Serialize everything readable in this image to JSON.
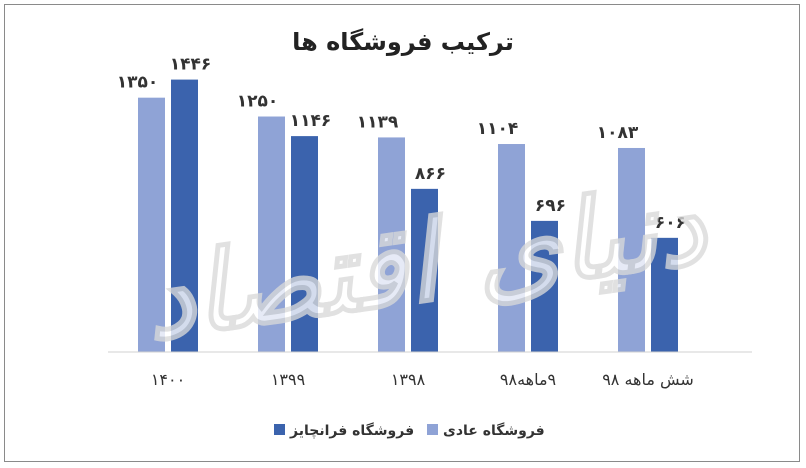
{
  "chart_data": {
    "type": "bar",
    "title": "ترکیب فروشگاه ها",
    "xlabel": "",
    "ylabel": "",
    "ylim": [
      0,
      1550
    ],
    "grid": false,
    "legend_position": "bottom",
    "categories": [
      "۱۴۰۰",
      "۱۳۹۹",
      "۱۳۹۸",
      "۹ماهه۹۸",
      "شش ماهه ۹۸"
    ],
    "series": [
      {
        "name": "فروشگاه عادی",
        "color": "#8fa3d6",
        "values": [
          1350,
          1250,
          1139,
          1104,
          1083
        ],
        "labels": [
          "۱۳۵۰",
          "۱۲۵۰",
          "۱۱۳۹",
          "۱۱۰۴",
          "۱۰۸۳"
        ]
      },
      {
        "name": "فروشگاه فرانچایز",
        "color": "#3b63ad",
        "values": [
          1446,
          1146,
          866,
          696,
          606
        ],
        "labels": [
          "۱۴۴۶",
          "۱۱۴۶",
          "۸۶۶",
          "۶۹۶",
          "۶۰۶"
        ]
      }
    ]
  },
  "watermark": "دنیای اقتصاد"
}
